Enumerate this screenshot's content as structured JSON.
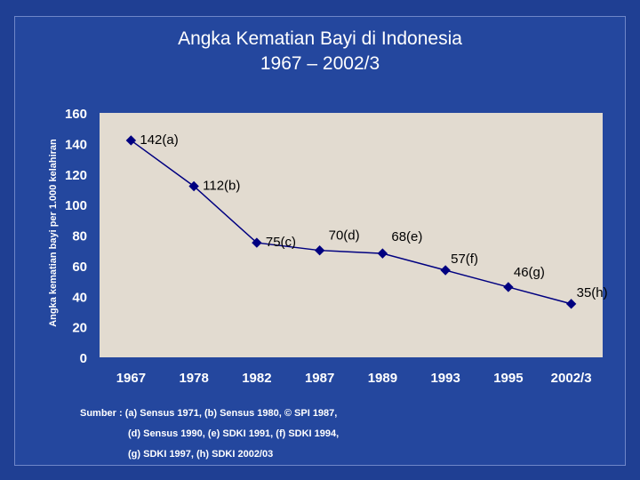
{
  "title_line1": "Angka Kematian Bayi di Indonesia",
  "title_line2": "1967 – 2002/3",
  "chart_data": {
    "type": "line",
    "title": "Angka Kematian Bayi di Indonesia 1967 – 2002/3",
    "xlabel": "",
    "ylabel": "Angka kematian bayi per 1.000 kelahiran",
    "categories": [
      "1967",
      "1978",
      "1982",
      "1987",
      "1989",
      "1993",
      "1995",
      "2002/3"
    ],
    "values": [
      142,
      112,
      75,
      70,
      68,
      57,
      46,
      35
    ],
    "data_labels": [
      "142(a)",
      "112(b)",
      "75(c)",
      "70(d)",
      "68(e)",
      "57(f)",
      "46(g)",
      "35(h)"
    ],
    "ylim": [
      0,
      160
    ],
    "yticks": [
      0,
      20,
      40,
      60,
      80,
      100,
      120,
      140,
      160
    ],
    "grid": false,
    "line_color": "#000080",
    "marker": "diamond",
    "plot_background": "#e2dbd0",
    "axis_label_color": "#ffffff"
  },
  "source": {
    "line1": "Sumber : (a) Sensus 1971, (b) Sensus 1980, © SPI 1987,",
    "line2": "(d) Sensus 1990, (e) SDKI 1991, (f) SDKI 1994,",
    "line3": "(g) SDKI 1997, (h) SDKI 2002/03"
  }
}
